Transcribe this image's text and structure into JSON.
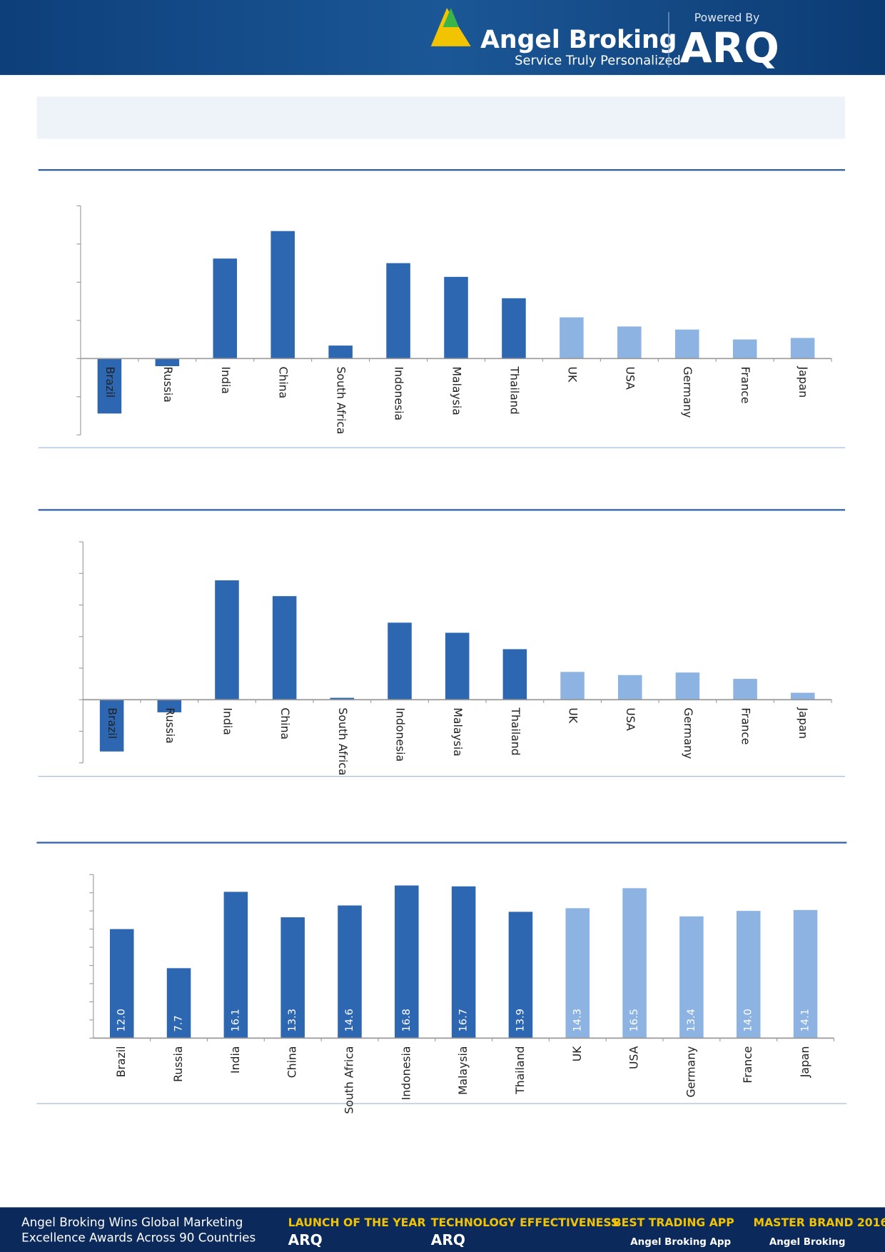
{
  "header": {
    "brand": "Angel Broking",
    "tagline": "Service Truly Personalized",
    "powered_by": "Powered By",
    "product": "ARQ"
  },
  "chart_data": [
    {
      "type": "bar",
      "categories": [
        "Brazil",
        "Russia",
        "India",
        "China",
        "South Africa",
        "Indonesia",
        "Malaysia",
        "Thailand",
        "UK",
        "USA",
        "Germany",
        "France",
        "Japan"
      ],
      "values": [
        -7.2,
        -1.0,
        13.1,
        16.7,
        1.7,
        12.5,
        10.7,
        7.9,
        5.4,
        4.2,
        3.8,
        2.5,
        2.7
      ],
      "colors": [
        "#2e67b1",
        "#2e67b1",
        "#2e67b1",
        "#2e67b1",
        "#2e67b1",
        "#2e67b1",
        "#2e67b1",
        "#2e67b1",
        "#8db3e2",
        "#8db3e2",
        "#8db3e2",
        "#8db3e2",
        "#8db3e2"
      ],
      "ylim": [
        -10,
        20
      ],
      "yticks": [
        -10,
        -5,
        0,
        5,
        10,
        15,
        20
      ]
    },
    {
      "type": "bar",
      "categories": [
        "Brazil",
        "Russia",
        "India",
        "China",
        "South Africa",
        "Indonesia",
        "Malaysia",
        "Thailand",
        "UK",
        "USA",
        "Germany",
        "France",
        "Japan"
      ],
      "values": [
        -8.2,
        -2.0,
        18.9,
        16.4,
        0.3,
        12.2,
        10.6,
        8.0,
        4.4,
        3.9,
        4.3,
        3.3,
        1.1
      ],
      "colors": [
        "#2e67b1",
        "#2e67b1",
        "#2e67b1",
        "#2e67b1",
        "#2e67b1",
        "#2e67b1",
        "#2e67b1",
        "#2e67b1",
        "#8db3e2",
        "#8db3e2",
        "#8db3e2",
        "#8db3e2",
        "#8db3e2"
      ],
      "ylim": [
        -10,
        25
      ],
      "yticks": [
        -10,
        -5,
        0,
        5,
        10,
        15,
        20,
        25
      ]
    },
    {
      "type": "bar",
      "categories": [
        "Brazil",
        "Russia",
        "India",
        "China",
        "South Africa",
        "Indonesia",
        "Malaysia",
        "Thailand",
        "UK",
        "USA",
        "Germany",
        "France",
        "Japan"
      ],
      "values": [
        12.0,
        7.7,
        16.1,
        13.3,
        14.6,
        16.8,
        16.7,
        13.9,
        14.3,
        16.5,
        13.4,
        14.0,
        14.1
      ],
      "value_labels": [
        "12.0",
        "7.7",
        "16.1",
        "13.3",
        "14.6",
        "16.8",
        "16.7",
        "13.9",
        "14.3",
        "16.5",
        "13.4",
        "14.0",
        "14.1"
      ],
      "colors": [
        "#2e67b1",
        "#2e67b1",
        "#2e67b1",
        "#2e67b1",
        "#2e67b1",
        "#2e67b1",
        "#2e67b1",
        "#2e67b1",
        "#8db3e2",
        "#8db3e2",
        "#8db3e2",
        "#8db3e2",
        "#8db3e2"
      ],
      "ylim": [
        0,
        18
      ],
      "yticks": [
        0,
        2,
        4,
        6,
        8,
        10,
        12,
        14,
        16,
        18
      ]
    }
  ],
  "footer": {
    "headline": [
      "Angel Broking Wins Global Marketing",
      "Excellence Awards Across 90 Countries"
    ],
    "awards": [
      {
        "title": "LAUNCH OF THE YEAR",
        "brand": "ARQ"
      },
      {
        "title": "TECHNOLOGY EFFECTIVENESS",
        "brand": "ARQ"
      },
      {
        "title": "BEST TRADING APP",
        "brand": "Angel Broking App"
      },
      {
        "title": "MASTER BRAND 2016",
        "brand": "Angel Broking"
      }
    ]
  }
}
